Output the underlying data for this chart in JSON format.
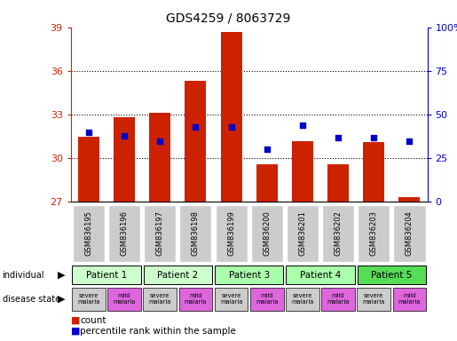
{
  "title": "GDS4259 / 8063729",
  "samples": [
    "GSM836195",
    "GSM836196",
    "GSM836197",
    "GSM836198",
    "GSM836199",
    "GSM836200",
    "GSM836201",
    "GSM836202",
    "GSM836203",
    "GSM836204"
  ],
  "bar_values": [
    31.5,
    32.8,
    33.1,
    35.3,
    38.7,
    29.6,
    31.2,
    29.6,
    31.1,
    27.3
  ],
  "dot_pct": [
    40,
    38,
    35,
    43,
    43,
    30,
    44,
    37,
    37,
    35
  ],
  "ylim": [
    27,
    39
  ],
  "yticks": [
    27,
    30,
    33,
    36,
    39
  ],
  "right_yticks": [
    0,
    25,
    50,
    75,
    100
  ],
  "bar_color": "#cc2200",
  "dot_color": "#0000cc",
  "patient_spans": [
    {
      "label": "Patient 1",
      "start": 0,
      "end": 2,
      "color": "#ccffcc"
    },
    {
      "label": "Patient 2",
      "start": 2,
      "end": 4,
      "color": "#ccffcc"
    },
    {
      "label": "Patient 3",
      "start": 4,
      "end": 6,
      "color": "#aaffaa"
    },
    {
      "label": "Patient 4",
      "start": 6,
      "end": 8,
      "color": "#aaffaa"
    },
    {
      "label": "Patient 5",
      "start": 8,
      "end": 10,
      "color": "#55dd55"
    }
  ],
  "disease_colors": [
    "#cccccc",
    "#dd66dd",
    "#cccccc",
    "#dd66dd",
    "#cccccc",
    "#dd66dd",
    "#cccccc",
    "#dd66dd",
    "#cccccc",
    "#dd66dd"
  ],
  "disease_labels": [
    "severe\nmalaria",
    "mild\nmalaria",
    "severe\nmalaria",
    "mild\nmalaria",
    "severe\nmalaria",
    "mild\nmalaria",
    "severe\nmalaria",
    "mild\nmalaria",
    "severe\nmalaria",
    "mild\nmalaria"
  ],
  "legend_count_color": "#cc2200",
  "legend_dot_color": "#0000cc",
  "bg_color": "#ffffff",
  "axis_color_left": "#cc2200",
  "axis_color_right": "#0000cc",
  "sample_bg_color": "#cccccc",
  "grid_color": "#333333"
}
